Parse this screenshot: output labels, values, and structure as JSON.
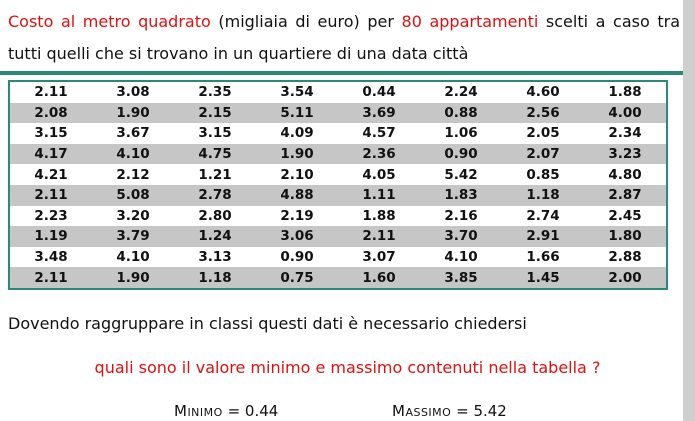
{
  "intro": {
    "part1": "Costo al metro quadrato",
    "part2": " (migliaia di euro) per ",
    "part3": "80 appartamenti",
    "part4": " scelti a caso tra tutti quelli che si trovano in un quartiere di una data città"
  },
  "table": {
    "rows": [
      [
        "2.11",
        "3.08",
        "2.35",
        "3.54",
        "0.44",
        "2.24",
        "4.60",
        "1.88"
      ],
      [
        "2.08",
        "1.90",
        "2.15",
        "5.11",
        "3.69",
        "0.88",
        "2.56",
        "4.00"
      ],
      [
        "3.15",
        "3.67",
        "3.15",
        "4.09",
        "4.57",
        "1.06",
        "2.05",
        "2.34"
      ],
      [
        "4.17",
        "4.10",
        "4.75",
        "1.90",
        "2.36",
        "0.90",
        "2.07",
        "3.23"
      ],
      [
        "4.21",
        "2.12",
        "1.21",
        "2.10",
        "4.05",
        "5.42",
        "0.85",
        "4.80"
      ],
      [
        "2.11",
        "5.08",
        "2.78",
        "4.88",
        "1.11",
        "1.83",
        "1.18",
        "2.87"
      ],
      [
        "2.23",
        "3.20",
        "2.80",
        "2.19",
        "1.88",
        "2.16",
        "2.74",
        "2.45"
      ],
      [
        "1.19",
        "3.79",
        "1.24",
        "3.06",
        "2.11",
        "3.70",
        "2.91",
        "1.80"
      ],
      [
        "3.48",
        "4.10",
        "3.13",
        "0.90",
        "3.07",
        "4.10",
        "1.66",
        "2.88"
      ],
      [
        "2.11",
        "1.90",
        "1.18",
        "0.75",
        "1.60",
        "3.85",
        "1.45",
        "2.00"
      ]
    ]
  },
  "question1": "Dovendo raggruppare in classi questi dati è necessario chiedersi",
  "question2": "quali sono il valore minimo e massimo contenuti nella tabella ?",
  "minimo": {
    "label": "Minimo",
    "value": "= 0.44"
  },
  "massimo": {
    "label": "Massimo",
    "value": "= 5.42"
  },
  "colors": {
    "accent_red": "#e01010",
    "border_teal": "#2a8a7a",
    "row_gray": "#c6c6c6"
  }
}
